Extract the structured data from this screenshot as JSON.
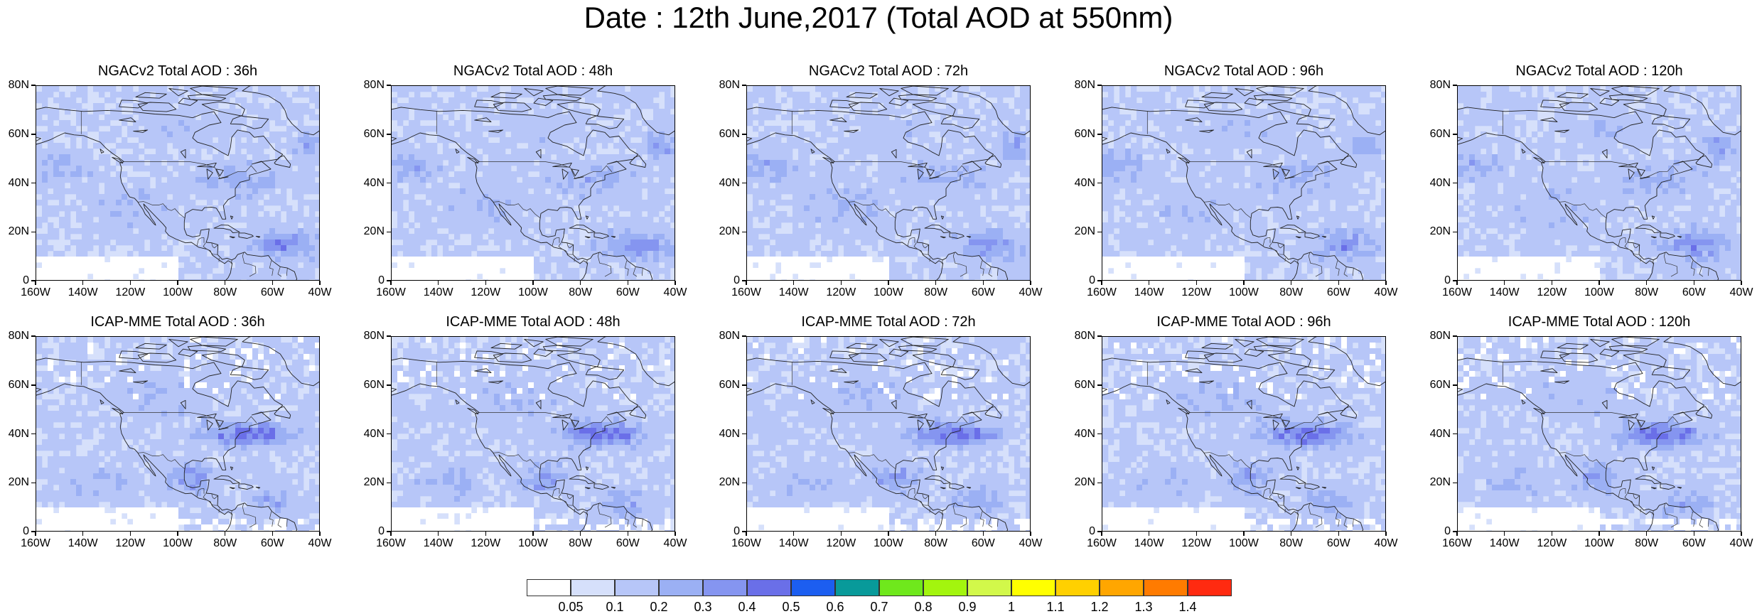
{
  "title": "Date : 12th June,2017 (Total AOD at 550nm)",
  "lat_labels": [
    "80N",
    "60N",
    "40N",
    "20N",
    "0"
  ],
  "lon_labels": [
    "160W",
    "140W",
    "120W",
    "100W",
    "80W",
    "60W",
    "40W"
  ],
  "panels": [
    {
      "title": "NGACv2 Total AOD : 36h"
    },
    {
      "title": "NGACv2 Total AOD : 48h"
    },
    {
      "title": "NGACv2 Total AOD : 72h"
    },
    {
      "title": "NGACv2 Total AOD : 96h"
    },
    {
      "title": "NGACv2 Total AOD : 120h"
    },
    {
      "title": "ICAP-MME Total AOD : 36h"
    },
    {
      "title": "ICAP-MME Total AOD : 48h"
    },
    {
      "title": "ICAP-MME Total AOD : 72h"
    },
    {
      "title": "ICAP-MME Total AOD : 96h"
    },
    {
      "title": "ICAP-MME Total AOD : 120h"
    }
  ],
  "colorbar": {
    "colors": [
      "#ffffff",
      "#d6e0fb",
      "#b7c6f8",
      "#9bb0f4",
      "#8595f0",
      "#6a6fe8",
      "#1c5ef0",
      "#089a9a",
      "#6fe81c",
      "#a3f50e",
      "#d2f84a",
      "#ffff00",
      "#ffd000",
      "#ffa600",
      "#ff7b00",
      "#ff2a10"
    ],
    "labels": [
      "0.05",
      "0.1",
      "0.2",
      "0.3",
      "0.4",
      "0.5",
      "0.6",
      "0.7",
      "0.8",
      "0.9",
      "1",
      "1.1",
      "1.2",
      "1.3",
      "1.4"
    ]
  }
}
